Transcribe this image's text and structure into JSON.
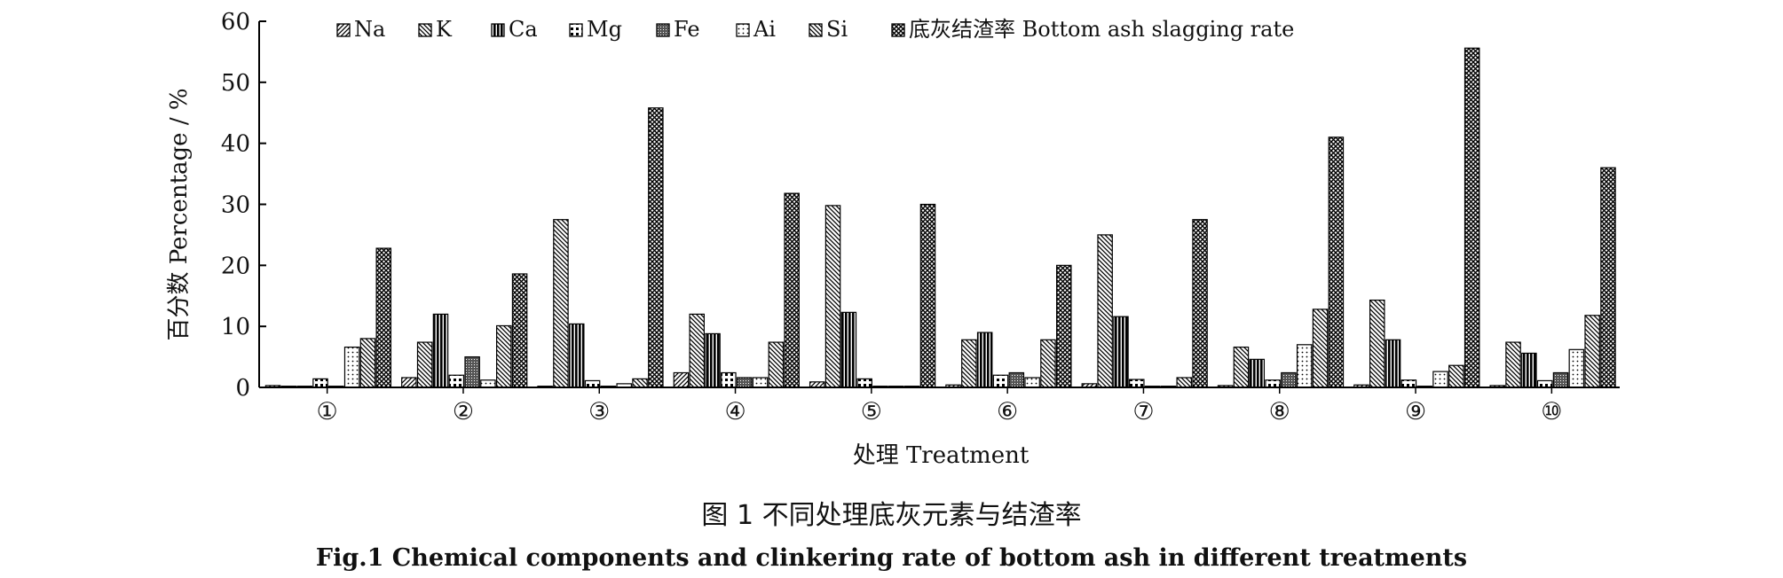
{
  "chart_data": {
    "type": "bar",
    "categories": [
      "①",
      "②",
      "③",
      "④",
      "⑤",
      "⑥",
      "⑦",
      "⑧",
      "⑨",
      "⑩"
    ],
    "ylabel": "百分数 Percentage / %",
    "xlabel": "处理 Treatment",
    "ylim": [
      0,
      60
    ],
    "yticks": [
      0,
      10,
      20,
      30,
      40,
      50,
      60
    ],
    "legend_position": "top",
    "grid": false,
    "series": [
      {
        "name": "Na",
        "pattern": "diag-right",
        "values": [
          0.3,
          1.6,
          0.2,
          2.4,
          0.9,
          0.4,
          0.6,
          0.3,
          0.4,
          0.3
        ]
      },
      {
        "name": "K",
        "pattern": "diag-left",
        "values": [
          0.2,
          7.4,
          27.5,
          12.0,
          29.8,
          7.8,
          25.0,
          6.6,
          14.3,
          7.4
        ]
      },
      {
        "name": "Ca",
        "pattern": "vertical",
        "values": [
          0.2,
          12.0,
          10.4,
          8.8,
          12.3,
          9.0,
          11.6,
          4.6,
          7.8,
          5.6
        ]
      },
      {
        "name": "Mg",
        "pattern": "squares",
        "values": [
          1.4,
          2.0,
          1.1,
          2.4,
          1.4,
          2.0,
          1.3,
          1.2,
          1.2,
          1.1
        ]
      },
      {
        "name": "Fe",
        "pattern": "dense",
        "values": [
          0.2,
          5.0,
          0.2,
          1.6,
          0.2,
          2.4,
          0.2,
          2.4,
          0.2,
          2.4
        ]
      },
      {
        "name": "Ai",
        "pattern": "dots",
        "values": [
          6.6,
          1.2,
          0.6,
          1.6,
          0.2,
          1.6,
          0.2,
          7.0,
          2.6,
          6.2
        ]
      },
      {
        "name": "Si",
        "pattern": "diag-left",
        "values": [
          8.0,
          10.1,
          1.4,
          7.4,
          0.2,
          7.8,
          1.6,
          12.8,
          3.6,
          11.8
        ]
      },
      {
        "name": "底灰结渣率 Bottom ash slagging rate",
        "pattern": "crosshatch",
        "values": [
          22.8,
          18.6,
          45.8,
          31.8,
          30.0,
          20.0,
          27.5,
          41.0,
          55.6,
          36.0
        ]
      }
    ]
  },
  "caption": {
    "cn": "图 1 不同处理底灰元素与结渣率",
    "en": "Fig.1 Chemical components and clinkering rate of bottom ash in different treatments"
  }
}
